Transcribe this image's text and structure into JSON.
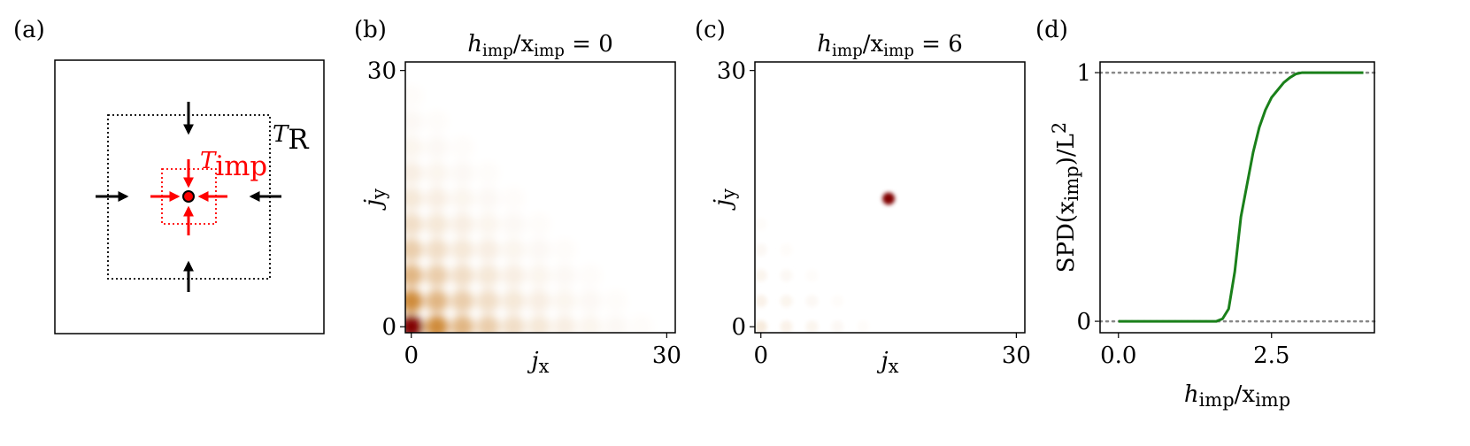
{
  "chart_data": [
    {
      "type": "diagram",
      "panel_label": "(a)",
      "labels": [
        [
          {
            "t": "T"
          },
          {
            "sub": "R"
          }
        ],
        [
          {
            "t": "T"
          },
          {
            "sub": "imp"
          }
        ]
      ],
      "colors": [
        "#000000",
        "#ff0000"
      ]
    },
    {
      "type": "heatmap",
      "panel_label": "(b)",
      "title": [
        {
          "t": "h"
        },
        {
          "sub": "imp"
        },
        {
          "t": "/x"
        },
        {
          "sub": "imp"
        },
        {
          "t": " = 0"
        }
      ],
      "xlabel": [
        {
          "t": "j"
        },
        {
          "sub": "x"
        }
      ],
      "ylabel": [
        {
          "t": "j"
        },
        {
          "sub": "y"
        }
      ],
      "x": [
        0,
        3,
        6,
        9,
        12,
        15,
        18,
        21,
        24,
        27,
        30
      ],
      "y": [
        0,
        3,
        6,
        9,
        12,
        15,
        18,
        21,
        24,
        27,
        30
      ],
      "z": [
        [
          1,
          0.35,
          0.22,
          0.15,
          0.1,
          0.07,
          0.05,
          0.03,
          0.02,
          0.01,
          0
        ],
        [
          0.35,
          0.22,
          0.15,
          0.1,
          0.07,
          0.05,
          0.03,
          0.02,
          0.01,
          0,
          0
        ],
        [
          0.22,
          0.15,
          0.1,
          0.07,
          0.05,
          0.03,
          0.02,
          0.01,
          0,
          0,
          0
        ],
        [
          0.15,
          0.1,
          0.07,
          0.05,
          0.03,
          0.02,
          0.01,
          0,
          0,
          0,
          0
        ],
        [
          0.1,
          0.07,
          0.05,
          0.03,
          0.02,
          0.01,
          0,
          0,
          0,
          0,
          0
        ],
        [
          0.07,
          0.05,
          0.03,
          0.02,
          0.01,
          0,
          0,
          0,
          0,
          0,
          0
        ],
        [
          0.05,
          0.03,
          0.02,
          0.01,
          0,
          0,
          0,
          0,
          0,
          0,
          0
        ],
        [
          0.03,
          0.02,
          0.01,
          0,
          0,
          0,
          0,
          0,
          0,
          0,
          0
        ],
        [
          0.02,
          0.01,
          0,
          0,
          0,
          0,
          0,
          0,
          0,
          0,
          0
        ],
        [
          0.01,
          0,
          0,
          0,
          0,
          0,
          0,
          0,
          0,
          0,
          0
        ],
        [
          0,
          0,
          0,
          0,
          0,
          0,
          0,
          0,
          0,
          0,
          0
        ]
      ],
      "xlim": [
        -0.7,
        31
      ],
      "ylim": [
        -0.7,
        31
      ],
      "xticks": [
        0,
        30
      ],
      "yticks": [
        0,
        30
      ],
      "colormap": [
        [
          0,
          "#ffffff"
        ],
        [
          0.4,
          "#c87a1e"
        ],
        [
          1,
          "#800000"
        ]
      ]
    },
    {
      "type": "heatmap",
      "panel_label": "(c)",
      "title": [
        {
          "t": "h"
        },
        {
          "sub": "imp"
        },
        {
          "t": "/x"
        },
        {
          "sub": "imp"
        },
        {
          "t": " = 6"
        }
      ],
      "xlabel": [
        {
          "t": "j"
        },
        {
          "sub": "x"
        }
      ],
      "ylabel": [
        {
          "t": "j"
        },
        {
          "sub": "y"
        }
      ],
      "x": [
        0,
        3,
        6,
        9,
        12,
        15,
        18,
        21,
        24,
        27,
        30
      ],
      "y": [
        0,
        3,
        6,
        9,
        12,
        15,
        18,
        21,
        24,
        27,
        30
      ],
      "z": [
        [
          0.06,
          0.04,
          0.03,
          0.02,
          0.01,
          0,
          0,
          0,
          0,
          0,
          0
        ],
        [
          0.04,
          0.03,
          0.02,
          0.01,
          0,
          0,
          0,
          0,
          0,
          0,
          0
        ],
        [
          0.03,
          0.02,
          0.01,
          0,
          0,
          0,
          0,
          0,
          0,
          0,
          0
        ],
        [
          0.02,
          0.01,
          0,
          0,
          0,
          0,
          0,
          0,
          0,
          0,
          0
        ],
        [
          0.01,
          0,
          0,
          0,
          0,
          0,
          0,
          0,
          0,
          0,
          0
        ],
        [
          0,
          0,
          0,
          0,
          0,
          1,
          0,
          0,
          0,
          0,
          0
        ],
        [
          0,
          0,
          0,
          0,
          0,
          0,
          0,
          0,
          0,
          0,
          0
        ],
        [
          0,
          0,
          0,
          0,
          0,
          0,
          0,
          0,
          0,
          0,
          0
        ],
        [
          0,
          0,
          0,
          0,
          0,
          0,
          0,
          0,
          0,
          0,
          0
        ],
        [
          0,
          0,
          0,
          0,
          0,
          0,
          0,
          0,
          0,
          0,
          0
        ],
        [
          0,
          0,
          0,
          0,
          0,
          0,
          0,
          0,
          0,
          0,
          0
        ]
      ],
      "xlim": [
        -0.7,
        31
      ],
      "ylim": [
        -0.7,
        31
      ],
      "xticks": [
        0,
        30
      ],
      "yticks": [
        0,
        30
      ],
      "colormap": [
        [
          0,
          "#ffffff"
        ],
        [
          0.4,
          "#c87a1e"
        ],
        [
          1,
          "#800000"
        ]
      ]
    },
    {
      "type": "line",
      "panel_label": "(d)",
      "xlabel": [
        {
          "t": "h"
        },
        {
          "sub": "imp"
        },
        {
          "t": "/x"
        },
        {
          "sub": "imp"
        }
      ],
      "ylabel": [
        {
          "t": "SPD(x"
        },
        {
          "sub": "imp"
        },
        {
          "t": ")/L"
        },
        {
          "sup": "2"
        }
      ],
      "x": [
        0,
        0.5,
        1.0,
        1.5,
        1.6,
        1.7,
        1.8,
        1.9,
        2.0,
        2.1,
        2.2,
        2.3,
        2.4,
        2.5,
        2.6,
        2.7,
        2.8,
        2.9,
        3.0,
        3.5,
        4.0
      ],
      "series": [
        {
          "color": "#1a801a",
          "values": [
            0,
            0,
            0,
            0,
            0,
            0.01,
            0.05,
            0.2,
            0.42,
            0.55,
            0.68,
            0.78,
            0.85,
            0.9,
            0.93,
            0.96,
            0.98,
            0.995,
            1,
            1,
            1
          ]
        }
      ],
      "hlines": [
        0,
        1
      ],
      "hline_color": "#888888",
      "xlim": [
        -0.3,
        4.18
      ],
      "ylim": [
        -0.046,
        1.043
      ],
      "xticks": [
        {
          "value": 0,
          "label": "0.0"
        },
        2.5
      ],
      "yticks": [
        0,
        1
      ]
    }
  ]
}
